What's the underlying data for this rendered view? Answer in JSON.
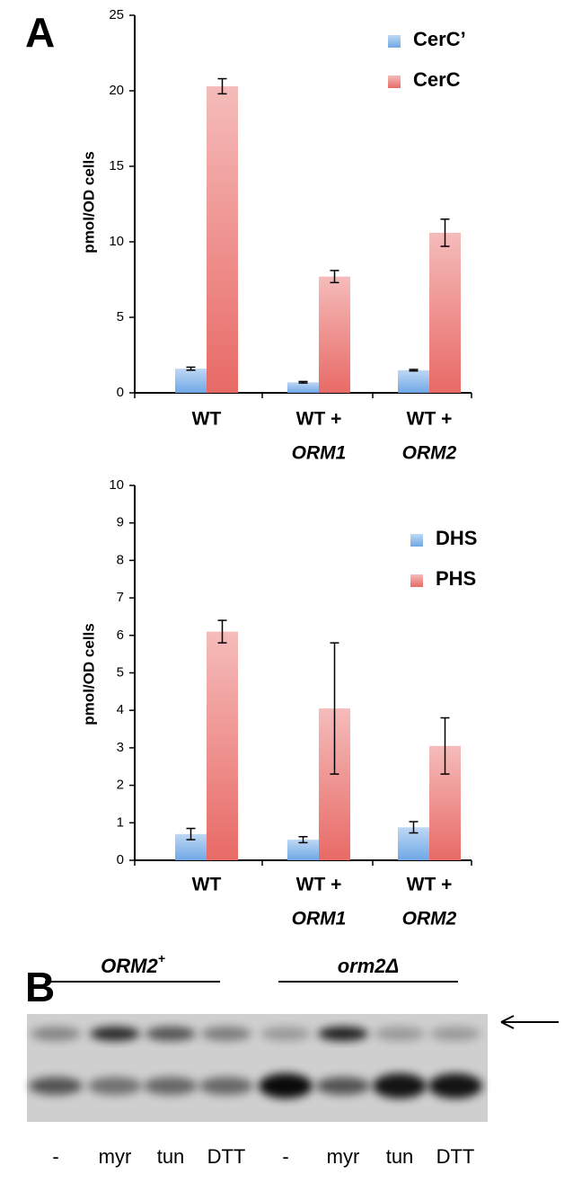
{
  "panels": [
    "A",
    "B"
  ],
  "chart_data": [
    {
      "type": "bar",
      "ylabel": "pmol/OD cells",
      "categories": [
        [
          "WT"
        ],
        [
          "WT +",
          "ORM1"
        ],
        [
          "WT +",
          "ORM2"
        ]
      ],
      "series": [
        {
          "name": "CerC’",
          "color": "#6fa8e6",
          "values": [
            1.6,
            0.7,
            1.5
          ],
          "errors": [
            0.1,
            0.05,
            0.05
          ]
        },
        {
          "name": "CerC",
          "color": "#e86a66",
          "values": [
            20.3,
            7.7,
            10.6
          ],
          "errors": [
            0.5,
            0.4,
            0.9
          ]
        }
      ],
      "ylim": [
        0,
        25
      ],
      "yticks": [
        0,
        5,
        10,
        15,
        20,
        25
      ],
      "legend": "upper right"
    },
    {
      "type": "bar",
      "ylabel": "pmol/OD cells",
      "categories": [
        [
          "WT"
        ],
        [
          "WT +",
          "ORM1"
        ],
        [
          "WT +",
          "ORM2"
        ]
      ],
      "series": [
        {
          "name": "DHS",
          "color": "#6fa8e6",
          "values": [
            0.7,
            0.55,
            0.88
          ],
          "errors": [
            0.15,
            0.08,
            0.15
          ]
        },
        {
          "name": "PHS",
          "color": "#e86a66",
          "values": [
            6.1,
            4.05,
            3.05
          ],
          "errors": [
            0.3,
            1.75,
            0.75
          ]
        }
      ],
      "ylim": [
        0,
        10
      ],
      "yticks": [
        0,
        1,
        2,
        3,
        4,
        5,
        6,
        7,
        8,
        9,
        10
      ],
      "legend": "upper right"
    }
  ],
  "gel": {
    "groups": [
      {
        "label": "ORM2",
        "superscript": "+"
      },
      {
        "label": "orm2Δ"
      }
    ],
    "lanes": [
      "-",
      "myr",
      "tun",
      "DTT",
      "-",
      "myr",
      "tun",
      "DTT"
    ]
  }
}
